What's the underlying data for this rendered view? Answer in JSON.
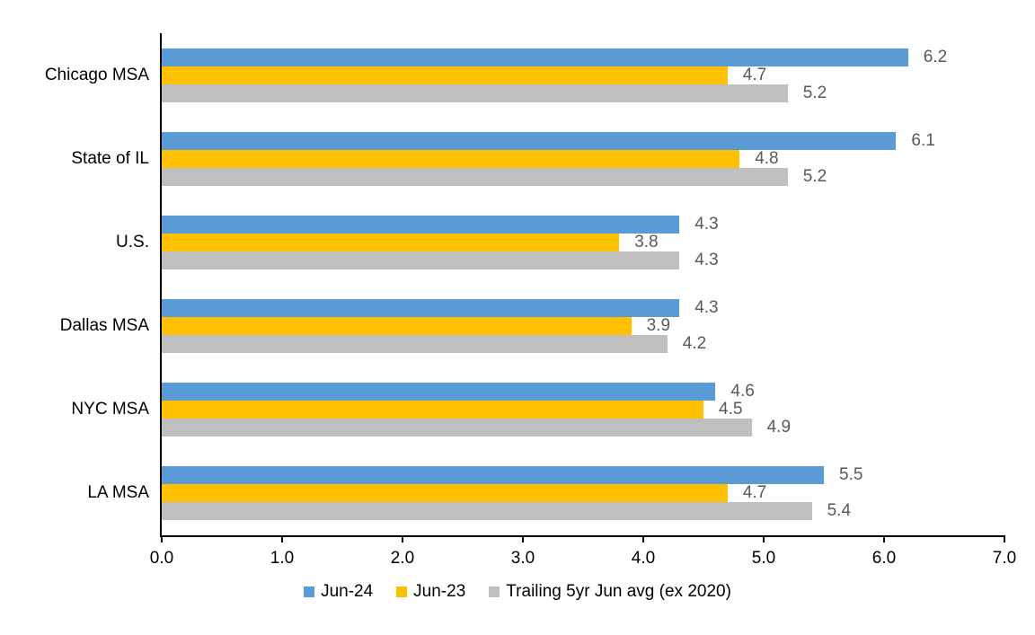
{
  "chart_data": {
    "type": "bar",
    "orientation": "horizontal",
    "title": "",
    "xlabel": "",
    "ylabel": "",
    "categories": [
      "Chicago MSA",
      "State of IL",
      "U.S.",
      "Dallas MSA",
      "NYC MSA",
      "LA MSA"
    ],
    "series": [
      {
        "name": "Jun-24",
        "color": "#5B9BD5",
        "values": [
          6.2,
          6.1,
          4.3,
          4.3,
          4.6,
          5.5
        ]
      },
      {
        "name": "Jun-23",
        "color": "#FFC000",
        "values": [
          4.7,
          4.8,
          3.8,
          3.9,
          4.5,
          4.7
        ]
      },
      {
        "name": "Trailing 5yr Jun avg (ex 2020)",
        "color": "#BFBFBF",
        "values": [
          5.2,
          5.2,
          4.3,
          4.2,
          4.9,
          5.4
        ]
      }
    ],
    "xlim": [
      0.0,
      7.0
    ],
    "x_tick_labels": [
      "0.0",
      "1.0",
      "2.0",
      "3.0",
      "4.0",
      "5.0",
      "6.0",
      "7.0"
    ],
    "data_labels_shown": true,
    "data_label_color": "#595959",
    "axis_color": "#000000",
    "legend_position": "bottom",
    "grid": false,
    "background_color": "#FFFFFF"
  }
}
